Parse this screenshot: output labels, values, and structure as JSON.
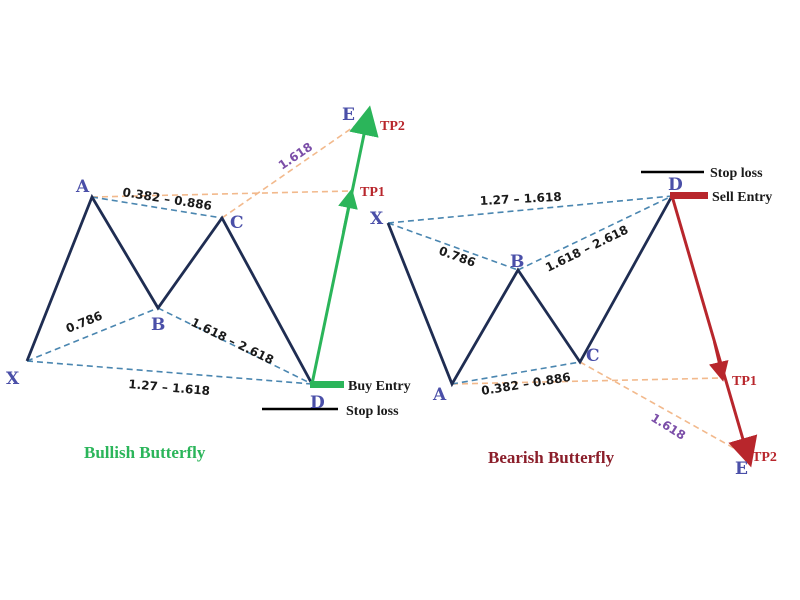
{
  "colors": {
    "leg": "#1f2d52",
    "dash_blue": "#4a86b0",
    "dash_orange": "#f2b98c",
    "point": "#4a4fa8",
    "bull": "#2bb55a",
    "bear": "#b8262c",
    "ext": "#7b4ea8",
    "stop": "#000000"
  },
  "bullish": {
    "title": "Bullish Butterfly",
    "points": {
      "x": "X",
      "a": "A",
      "b": "B",
      "c": "C",
      "d": "D",
      "e": "E"
    },
    "ratios": {
      "ab": "0.786",
      "bc": "0.382 – 0.886",
      "cd": "1.618 – 2.618",
      "xd": "1.27 – 1.618",
      "ext": "1.618"
    },
    "labels": {
      "entry": "Buy Entry",
      "stop": "Stop loss",
      "tp1": "TP1",
      "tp2": "TP2"
    }
  },
  "bearish": {
    "title": "Bearish Butterfly",
    "points": {
      "x": "X",
      "a": "A",
      "b": "B",
      "c": "C",
      "d": "D",
      "e": "E"
    },
    "ratios": {
      "ab": "0.786",
      "bc": "0.382 – 0.886",
      "cd": "1.618 – 2.618",
      "xd": "1.27 – 1.618",
      "ext": "1.618"
    },
    "labels": {
      "entry": "Sell Entry",
      "stop": "Stop loss",
      "tp1": "TP1",
      "tp2": "TP2"
    }
  }
}
